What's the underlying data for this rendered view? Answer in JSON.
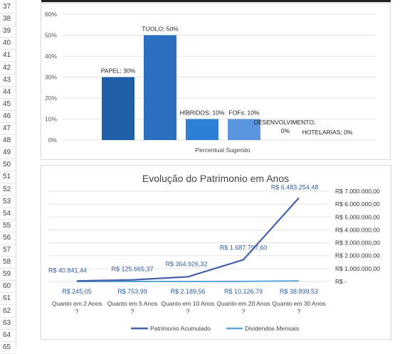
{
  "row_numbers": [
    "37",
    "38",
    "39",
    "40",
    "41",
    "42",
    "43",
    "44",
    "45",
    "46",
    "47",
    "48",
    "49",
    "50",
    "51",
    "52",
    "53",
    "54",
    "55",
    "56",
    "57",
    "58",
    "59",
    "60",
    "61",
    "62",
    "63",
    "64",
    "65"
  ],
  "chart_data": [
    {
      "type": "bar",
      "title": "",
      "xlabel": "Percentual Sugerido",
      "ylabel": "",
      "ylim": [
        0,
        60
      ],
      "yticks": [
        "0%",
        "10%",
        "20%",
        "30%",
        "40%",
        "50%",
        "60%"
      ],
      "grid": true,
      "categories": [
        "PAPEL",
        "TIJOLO",
        "HÍBRIDOS",
        "FOFs",
        "DESENVOLVIMENTO",
        "HOTELARIAS"
      ],
      "values": [
        30,
        50,
        10,
        10,
        0,
        0
      ],
      "colors": [
        "#1f5fa8",
        "#2a6fc0",
        "#2e7fd6",
        "#5b95dd",
        "#5b95dd",
        "#5b95dd"
      ],
      "data_labels": [
        "PAPEL; 30%",
        "TIJOLO; 50%",
        "HÍBRIDOS; 10%",
        "FOFs; 10%",
        "DESENVOLVIMENTO;",
        "HOTELARIAS; 0%"
      ],
      "data_label_extra": "0%"
    },
    {
      "type": "line",
      "title": "Evolução do Patrimonio em Anos",
      "categories": [
        "Quanto em 2 Anos ?",
        "Quanto em 5 Anos ?",
        "Quanto em 10 Anos ?",
        "Quanto em 20 Anos ?",
        "Quanto em 30 Anos ?"
      ],
      "ylim": [
        0,
        7000000
      ],
      "yticks": [
        "R$ -",
        "R$ 1.000.000,00",
        "R$ 2.000.000,00",
        "R$ 3.000.000,00",
        "R$ 4.000.000,00",
        "R$ 5.000.000,00",
        "R$ 6.000.000,00",
        "R$ 7.000.000,00"
      ],
      "grid": true,
      "legend_position": "bottom",
      "series": [
        {
          "name": "Patrimonio Acumulado",
          "color": "#4460a8",
          "values": [
            40841.44,
            125665.37,
            364926.32,
            1687797.6,
            6483254.48
          ],
          "labels": [
            "R$ 40.841,44",
            "R$ 125.665,37",
            "R$ 364.926,32",
            "R$ 1.687.797,60",
            "R$ 6.483.254,48"
          ]
        },
        {
          "name": "Dividendos Mensais",
          "color": "#5aa7d6",
          "values": [
            245.05,
            753.99,
            2189.56,
            10126.79,
            38899.53
          ],
          "labels": [
            "R$ 245,05",
            "R$ 753,99",
            "R$ 2.189,56",
            "R$ 10.126,79",
            "R$ 38.899,53"
          ]
        }
      ]
    }
  ]
}
